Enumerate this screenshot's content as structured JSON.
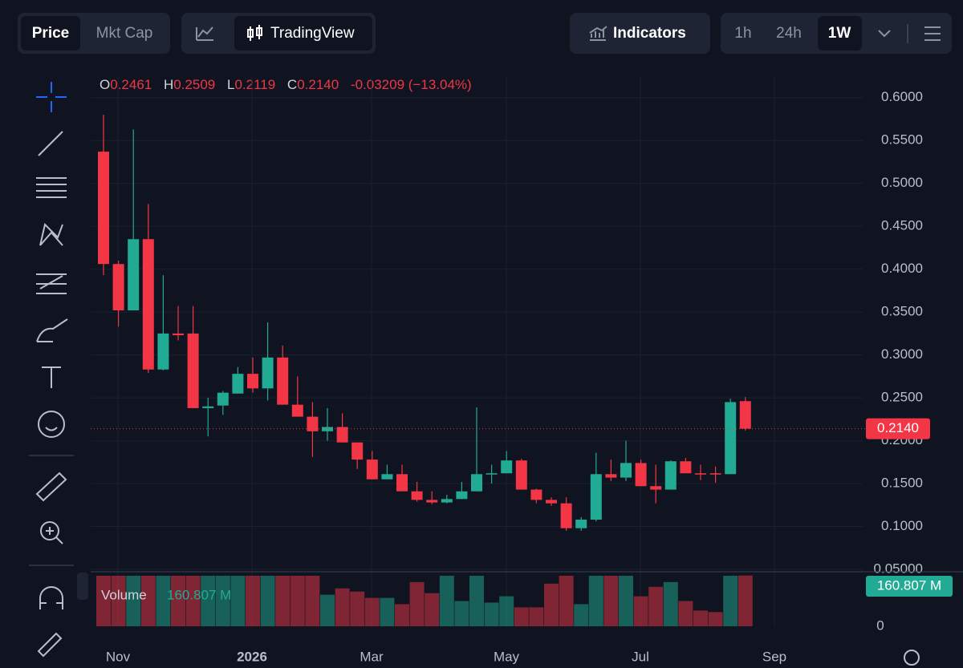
{
  "toolbar": {
    "price": "Price",
    "mkt_cap": "Mkt Cap",
    "tradingview": "TradingView",
    "indicators": "Indicators",
    "intervals": [
      "1h",
      "24h",
      "1W"
    ]
  },
  "ohlc_header": {
    "o": "O",
    "o_value": "0.2461",
    "h": "H",
    "h_value": "0.2509",
    "l": "L",
    "l_value": "0.2119",
    "c": "C",
    "c_value": "0.2140",
    "change": "-0.03209 (−13.04%)"
  },
  "chart_data": {
    "type": "candlestick",
    "up_color": "#22ab94",
    "down_color": "#f23645",
    "x_labels": [
      "Nov",
      "2026",
      "Mar",
      "May",
      "Jul",
      "Sep"
    ],
    "open": [
      0.537,
      0.406,
      0.352,
      0.435,
      0.283,
      0.325,
      0.325,
      0.238,
      0.241,
      0.255,
      0.278,
      0.261,
      0.297,
      0.242,
      0.228,
      0.211,
      0.216,
      0.198,
      0.178,
      0.155,
      0.161,
      0.141,
      0.131,
      0.128,
      0.132,
      0.141,
      0.161,
      0.162,
      0.177,
      0.143,
      0.131,
      0.127,
      0.098,
      0.108,
      0.161,
      0.157,
      0.174,
      0.147,
      0.143,
      0.176,
      0.162,
      0.162,
      0.161,
      0.2461
    ],
    "high": [
      0.58,
      0.41,
      0.563,
      0.476,
      0.393,
      0.357,
      0.357,
      0.25,
      0.258,
      0.286,
      0.297,
      0.338,
      0.311,
      0.275,
      0.245,
      0.238,
      0.232,
      0.198,
      0.188,
      0.172,
      0.172,
      0.152,
      0.141,
      0.137,
      0.152,
      0.239,
      0.172,
      0.188,
      0.179,
      0.144,
      0.134,
      0.134,
      0.111,
      0.186,
      0.178,
      0.2,
      0.178,
      0.172,
      0.177,
      0.18,
      0.172,
      0.17,
      0.249,
      0.2509
    ],
    "low": [
      0.393,
      0.333,
      0.352,
      0.279,
      0.282,
      0.317,
      0.238,
      0.205,
      0.23,
      0.255,
      0.256,
      0.247,
      0.242,
      0.228,
      0.181,
      0.2,
      0.198,
      0.167,
      0.155,
      0.155,
      0.141,
      0.129,
      0.126,
      0.127,
      0.132,
      0.141,
      0.15,
      0.162,
      0.143,
      0.127,
      0.124,
      0.095,
      0.095,
      0.106,
      0.153,
      0.153,
      0.147,
      0.127,
      0.143,
      0.162,
      0.154,
      0.151,
      0.161,
      0.2119
    ],
    "close": [
      0.406,
      0.352,
      0.435,
      0.283,
      0.325,
      0.323,
      0.238,
      0.24,
      0.256,
      0.278,
      0.261,
      0.297,
      0.242,
      0.228,
      0.211,
      0.216,
      0.198,
      0.178,
      0.155,
      0.161,
      0.141,
      0.131,
      0.128,
      0.132,
      0.141,
      0.161,
      0.162,
      0.177,
      0.143,
      0.131,
      0.127,
      0.098,
      0.108,
      0.161,
      0.157,
      0.174,
      0.147,
      0.143,
      0.176,
      0.162,
      0.161,
      0.161,
      0.245,
      0.214
    ],
    "ylim": [
      0.05,
      0.625
    ],
    "yticks": [
      {
        "value": 0.6,
        "label": "0.6000"
      },
      {
        "value": 0.55,
        "label": "0.5500"
      },
      {
        "value": 0.5,
        "label": "0.5000"
      },
      {
        "value": 0.45,
        "label": "0.4500"
      },
      {
        "value": 0.4,
        "label": "0.4000"
      },
      {
        "value": 0.35,
        "label": "0.3500"
      },
      {
        "value": 0.3,
        "label": "0.3000"
      },
      {
        "value": 0.25,
        "label": "0.2500"
      },
      {
        "value": 0.2,
        "label": "0.2000"
      },
      {
        "value": 0.15,
        "label": "0.1500"
      },
      {
        "value": 0.1,
        "label": "0.1000"
      },
      {
        "value": 0.05,
        "label": "0.05000"
      }
    ],
    "last_price_label": "0.2140",
    "volume_title": "Volume",
    "volume": [
      160,
      160,
      160,
      160,
      160,
      160,
      160,
      160,
      160,
      160,
      160,
      160,
      160,
      160,
      160,
      100,
      120,
      110,
      90,
      90,
      70,
      140,
      105,
      160,
      80,
      160,
      75,
      95,
      60,
      60,
      135,
      160,
      70,
      160,
      160,
      160,
      95,
      125,
      140,
      80,
      50,
      45,
      160,
      160.807
    ],
    "volume_value_labels": [
      null,
      null,
      null,
      null,
      null,
      null,
      null,
      null,
      null,
      null,
      null,
      null,
      null,
      null,
      null,
      null,
      null,
      null,
      null,
      null,
      null,
      null,
      null,
      null,
      null,
      null,
      null,
      null,
      null,
      null,
      null,
      null,
      null,
      null,
      null,
      null,
      null,
      null,
      null,
      null,
      null,
      null,
      null,
      "160.807 M"
    ],
    "volume_ylim": [
      0,
      165
    ],
    "volume_yticks": [
      0
    ]
  }
}
